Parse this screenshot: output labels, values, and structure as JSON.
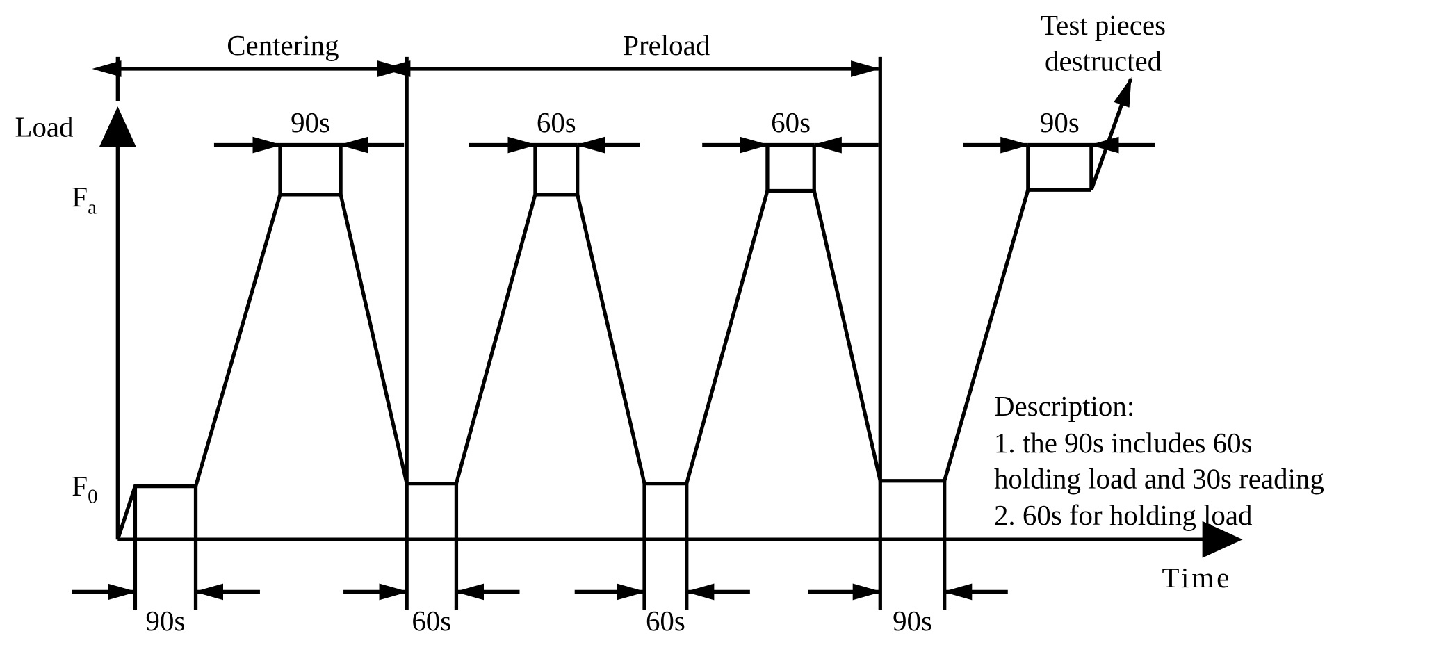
{
  "phases": [
    {
      "label": "Centering"
    },
    {
      "label": "Preload"
    }
  ],
  "annotation": [
    "Test pieces",
    "destructed"
  ],
  "axes": {
    "y_label": "Load",
    "x_label": "Time",
    "levels": [
      {
        "main": "F",
        "sub": "a"
      },
      {
        "main": "F",
        "sub": "0"
      }
    ]
  },
  "top_durations": [
    "90s",
    "60s",
    "60s",
    "90s"
  ],
  "bottom_durations": [
    "90s",
    "60s",
    "60s",
    "90s"
  ],
  "description": {
    "title": "Description:",
    "lines": [
      "1. the 90s includes 60s",
      "holding load and 30s reading",
      "2. 60s for holding load"
    ]
  }
}
